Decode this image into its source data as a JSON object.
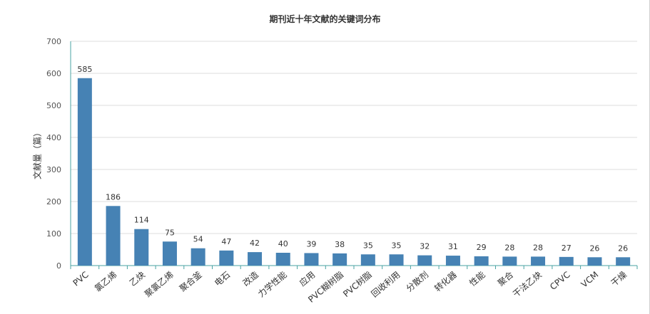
{
  "chart_data": {
    "type": "bar",
    "title": "期刊近十年文献的关键词分布",
    "xlabel": "",
    "ylabel": "文献量（篇）",
    "ylim": [
      0,
      700
    ],
    "yticks": [
      0,
      100,
      200,
      300,
      400,
      500,
      600,
      700
    ],
    "grid": true,
    "legend": "none",
    "bar_color": "#4682b4",
    "axis_color": "#4aa3a3",
    "categories": [
      "PVC",
      "氯乙烯",
      "乙炔",
      "聚氯乙烯",
      "聚合釜",
      "电石",
      "改造",
      "力学性能",
      "应用",
      "PVC糊树脂",
      "PVC树脂",
      "回收利用",
      "分散剂",
      "转化器",
      "性能",
      "聚合",
      "干法乙炔",
      "CPVC",
      "VCM",
      "干燥"
    ],
    "values": [
      585,
      186,
      114,
      75,
      54,
      47,
      42,
      40,
      39,
      38,
      35,
      35,
      32,
      31,
      29,
      28,
      28,
      27,
      26,
      26
    ]
  }
}
